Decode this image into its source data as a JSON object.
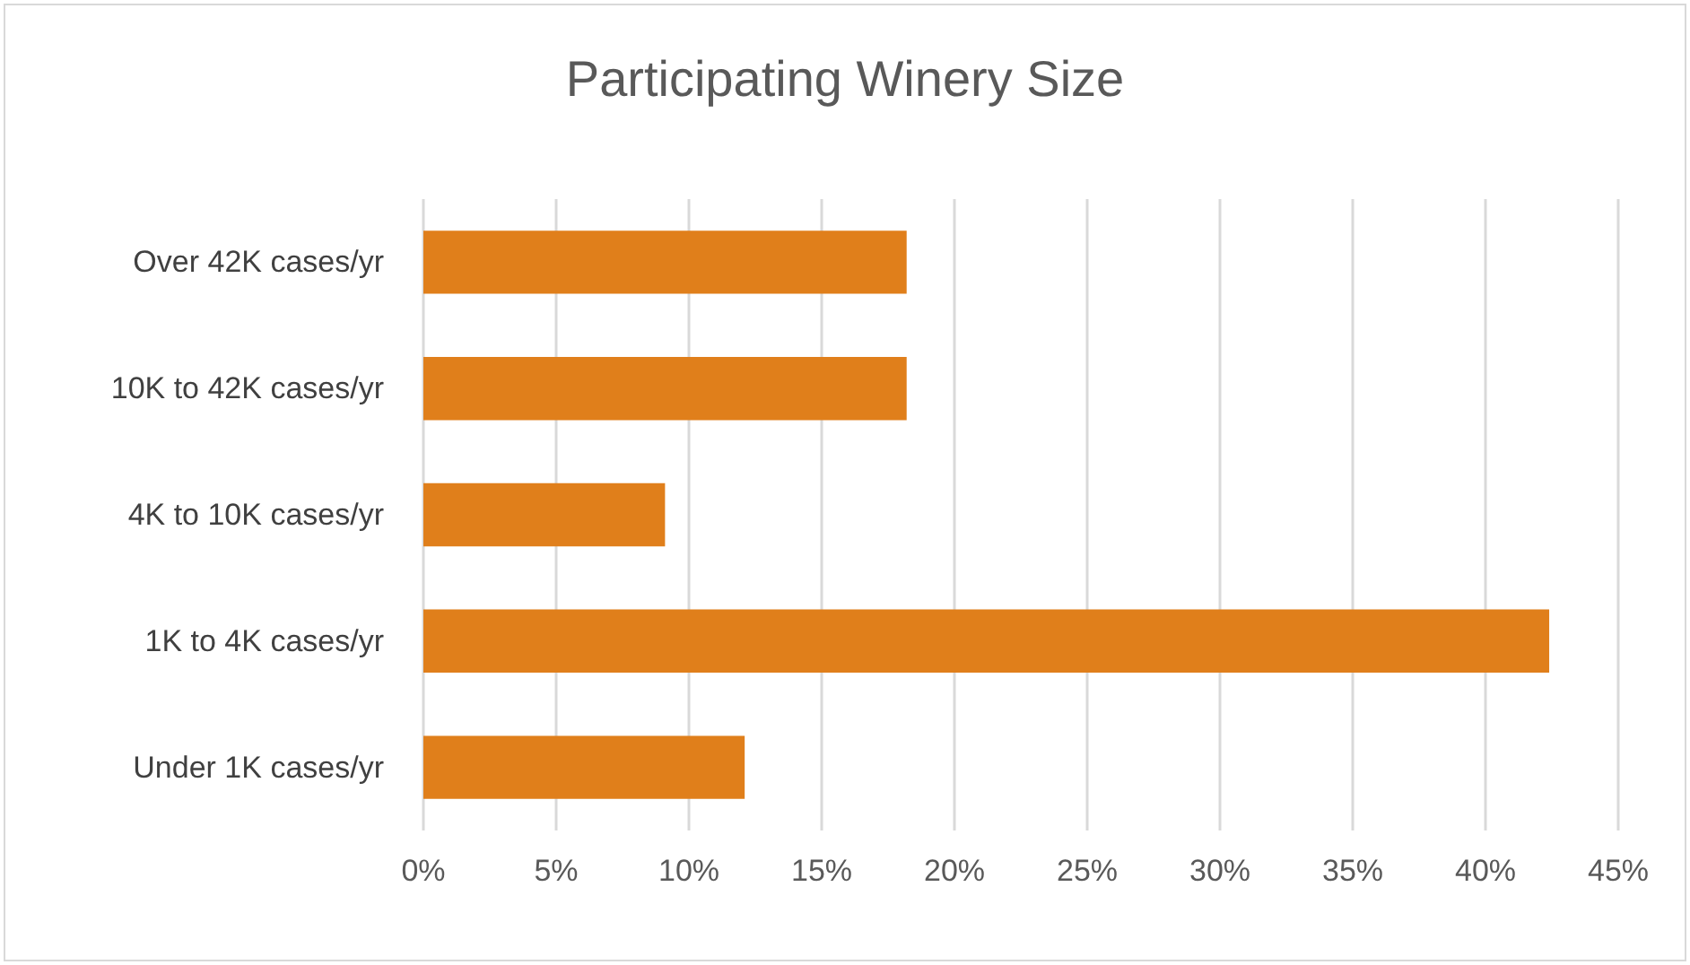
{
  "chart_data": {
    "type": "bar",
    "orientation": "horizontal",
    "title": "Participating Winery Size",
    "categories": [
      "Over 42K cases/yr",
      "10K to 42K cases/yr",
      "4K to 10K cases/yr",
      "1K to 4K cases/yr",
      "Under 1K cases/yr"
    ],
    "values": [
      18.2,
      18.2,
      9.1,
      42.4,
      12.1
    ],
    "color": "#e07f1b",
    "xlim": [
      0,
      45
    ],
    "xticks": [
      {
        "value": 0,
        "label": "0%"
      },
      {
        "value": 5,
        "label": "5%"
      },
      {
        "value": 10,
        "label": "10%"
      },
      {
        "value": 15,
        "label": "15%"
      },
      {
        "value": 20,
        "label": "20%"
      },
      {
        "value": 25,
        "label": "25%"
      },
      {
        "value": 30,
        "label": "30%"
      },
      {
        "value": 35,
        "label": "35%"
      },
      {
        "value": 40,
        "label": "40%"
      },
      {
        "value": 45,
        "label": "45%"
      }
    ],
    "grid": "x"
  }
}
